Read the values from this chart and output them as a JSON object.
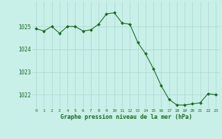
{
  "x": [
    0,
    1,
    2,
    3,
    4,
    5,
    6,
    7,
    8,
    9,
    10,
    11,
    12,
    13,
    14,
    15,
    16,
    17,
    18,
    19,
    20,
    21,
    22,
    23
  ],
  "y": [
    1024.9,
    1024.8,
    1025.0,
    1024.7,
    1025.0,
    1025.0,
    1024.8,
    1024.85,
    1025.1,
    1025.55,
    1025.6,
    1025.15,
    1025.1,
    1024.3,
    1023.8,
    1023.15,
    1022.4,
    1021.8,
    1021.55,
    1021.55,
    1021.6,
    1021.65,
    1022.05,
    1022.0
  ],
  "line_color": "#1a6b1a",
  "marker_color": "#1a6b1a",
  "bg_color": "#c8efe8",
  "grid_color": "#a8d8d0",
  "text_color": "#1a6b1a",
  "xlabel": "Graphe pression niveau de la mer (hPa)",
  "ylim": [
    1021.4,
    1026.1
  ],
  "yticks": [
    1022,
    1023,
    1024,
    1025
  ],
  "xticks": [
    0,
    1,
    2,
    3,
    4,
    5,
    6,
    7,
    8,
    9,
    10,
    11,
    12,
    13,
    14,
    15,
    16,
    17,
    18,
    19,
    20,
    21,
    22,
    23
  ]
}
